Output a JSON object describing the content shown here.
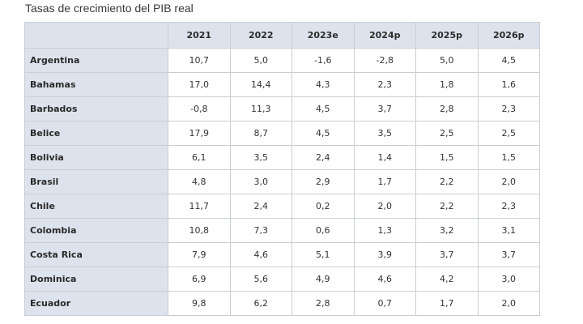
{
  "title": "Tasas de crecimiento del PIB real",
  "table": {
    "headers": [
      "",
      "2021",
      "2022",
      "2023e",
      "2024p",
      "2025p",
      "2026p"
    ],
    "rows": [
      {
        "country": "Argentina",
        "values": [
          "10,7",
          "5,0",
          "-1,6",
          "-2,8",
          "5,0",
          "4,5"
        ]
      },
      {
        "country": "Bahamas",
        "values": [
          "17,0",
          "14,4",
          "4,3",
          "2,3",
          "1,8",
          "1,6"
        ]
      },
      {
        "country": "Barbados",
        "values": [
          "-0,8",
          "11,3",
          "4,5",
          "3,7",
          "2,8",
          "2,3"
        ]
      },
      {
        "country": "Belice",
        "values": [
          "17,9",
          "8,7",
          "4,5",
          "3,5",
          "2,5",
          "2,5"
        ]
      },
      {
        "country": "Bolivia",
        "values": [
          "6,1",
          "3,5",
          "2,4",
          "1,4",
          "1,5",
          "1,5"
        ]
      },
      {
        "country": "Brasil",
        "values": [
          "4,8",
          "3,0",
          "2,9",
          "1,7",
          "2,2",
          "2,0"
        ]
      },
      {
        "country": "Chile",
        "values": [
          "11,7",
          "2,4",
          "0,2",
          "2,0",
          "2,2",
          "2,3"
        ]
      },
      {
        "country": "Colombia",
        "values": [
          "10,8",
          "7,3",
          "0,6",
          "1,3",
          "3,2",
          "3,1"
        ]
      },
      {
        "country": "Costa Rica",
        "values": [
          "7,9",
          "4,6",
          "5,1",
          "3,9",
          "3,7",
          "3,7"
        ]
      },
      {
        "country": "Dominica",
        "values": [
          "6,9",
          "5,6",
          "4,9",
          "4,6",
          "4,2",
          "3,0"
        ]
      },
      {
        "country": "Ecuador",
        "values": [
          "9,8",
          "6,2",
          "2,8",
          "0,7",
          "1,7",
          "2,0"
        ]
      }
    ]
  }
}
